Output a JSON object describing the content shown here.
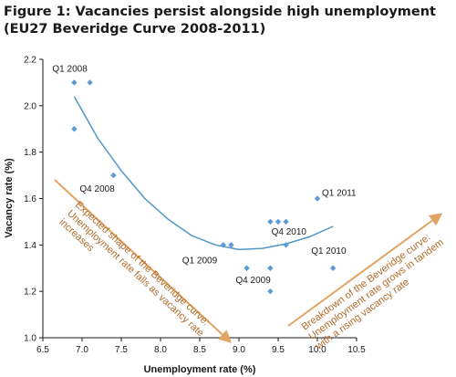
{
  "chart_data": {
    "type": "scatter",
    "title": "Figure 1: Vacancies persist alongside high unemployment",
    "subtitle": "(EU27 Beveridge Curve 2008-2011)",
    "xlabel": "Unemployment rate (%)",
    "ylabel": "Vacancy rate (%)",
    "xlim": [
      6.5,
      10.5
    ],
    "ylim": [
      1.0,
      2.2
    ],
    "xticks": [
      "6.5",
      "7.0",
      "7.5",
      "8.0",
      "8.5",
      "9.0",
      "9.5",
      "10.0",
      "10.5"
    ],
    "yticks": [
      "1.0",
      "1.2",
      "1.4",
      "1.6",
      "1.8",
      "2.0",
      "2.2"
    ],
    "grid": false,
    "points": [
      {
        "x": 6.9,
        "y": 2.1
      },
      {
        "x": 7.1,
        "y": 2.1
      },
      {
        "x": 6.9,
        "y": 1.9
      },
      {
        "x": 7.4,
        "y": 1.7
      },
      {
        "x": 8.8,
        "y": 1.4
      },
      {
        "x": 8.9,
        "y": 1.4
      },
      {
        "x": 9.1,
        "y": 1.3
      },
      {
        "x": 9.4,
        "y": 1.3
      },
      {
        "x": 9.4,
        "y": 1.2
      },
      {
        "x": 9.4,
        "y": 1.5
      },
      {
        "x": 9.5,
        "y": 1.5
      },
      {
        "x": 9.6,
        "y": 1.5
      },
      {
        "x": 9.6,
        "y": 1.4
      },
      {
        "x": 10.0,
        "y": 1.6
      },
      {
        "x": 10.2,
        "y": 1.3
      }
    ],
    "trendline": {
      "type": "polynomial",
      "x": [
        6.9,
        7.2,
        7.5,
        7.8,
        8.1,
        8.4,
        8.7,
        9.0,
        9.3,
        9.6,
        9.9,
        10.2
      ],
      "y": [
        2.04,
        1.86,
        1.72,
        1.6,
        1.51,
        1.44,
        1.4,
        1.38,
        1.385,
        1.405,
        1.435,
        1.48
      ]
    },
    "point_labels": [
      {
        "text": "Q1 2008",
        "x": 6.9,
        "y": 2.1
      },
      {
        "text": "Q4 2008",
        "x": 7.4,
        "y": 1.7
      },
      {
        "text": "Q1 2009",
        "x": 8.8,
        "y": 1.4
      },
      {
        "text": "Q4 2009",
        "x": 9.4,
        "y": 1.2
      },
      {
        "text": "Q4 2010",
        "x": 9.6,
        "y": 1.5
      },
      {
        "text": "Q1 2011",
        "x": 10.0,
        "y": 1.6
      },
      {
        "text": "Q1 2010",
        "x": 10.2,
        "y": 1.3
      }
    ],
    "annotations": [
      {
        "lines": [
          "Expected shape of the Beveridge curve:",
          "Unemployment rate falls as vacancy rate",
          "increases"
        ]
      },
      {
        "lines": [
          "Breakdown of the Beveridge curve:",
          "Unemployment rate grows in tandem",
          "with a rising vacancy rate"
        ]
      }
    ],
    "colors": {
      "points": "#5b9bd5",
      "trendline": "#4f97c6",
      "annotation": "#b26a2a",
      "arrow": "#e2a463"
    }
  }
}
